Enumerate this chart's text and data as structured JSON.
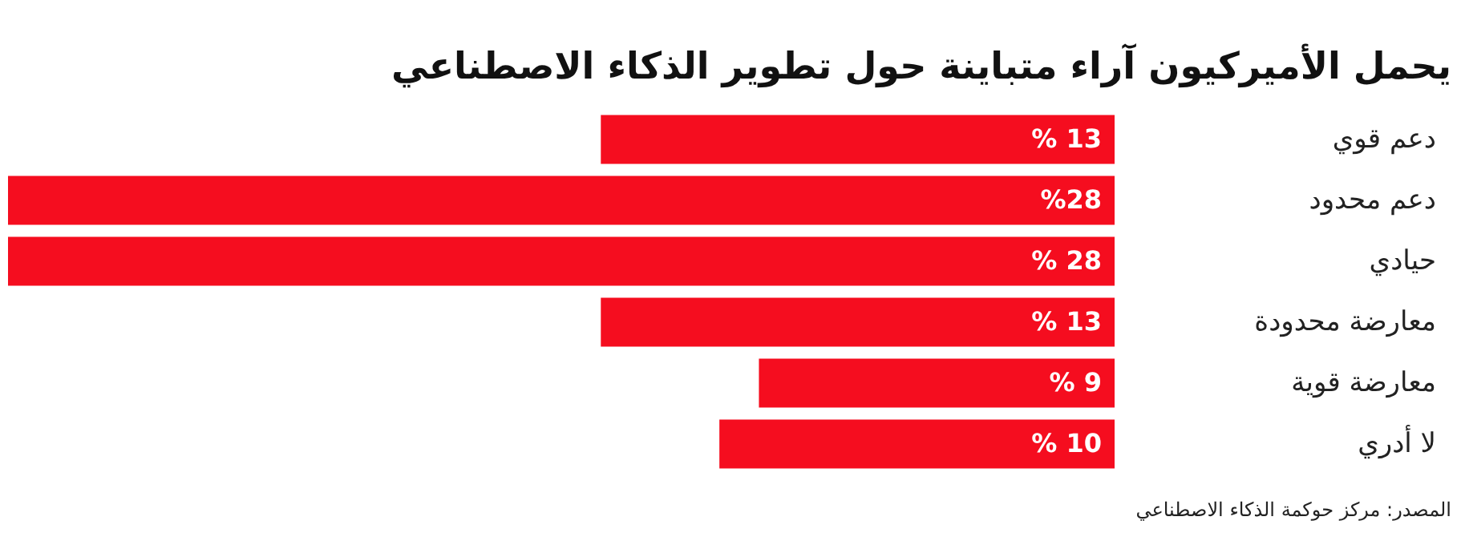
{
  "chart_data": {
    "type": "bar",
    "orientation": "horizontal",
    "title": "يحمل الأميركيون آراء متباينة حول تطوير الذكاء الاصطناعي",
    "categories": [
      "دعم قوي",
      "دعم محدود",
      "حيادي",
      "معارضة محدودة",
      "معارضة قوية",
      "لا أدري"
    ],
    "values": [
      13,
      28,
      28,
      13,
      9,
      10
    ],
    "value_labels": [
      "% 13",
      "%28",
      "% 28",
      "% 13",
      "% 9",
      "% 10"
    ],
    "color": "#f50d1f",
    "annotations": [
      "المصدر: مركز حوكمة الذكاء الاصطناعي"
    ]
  }
}
